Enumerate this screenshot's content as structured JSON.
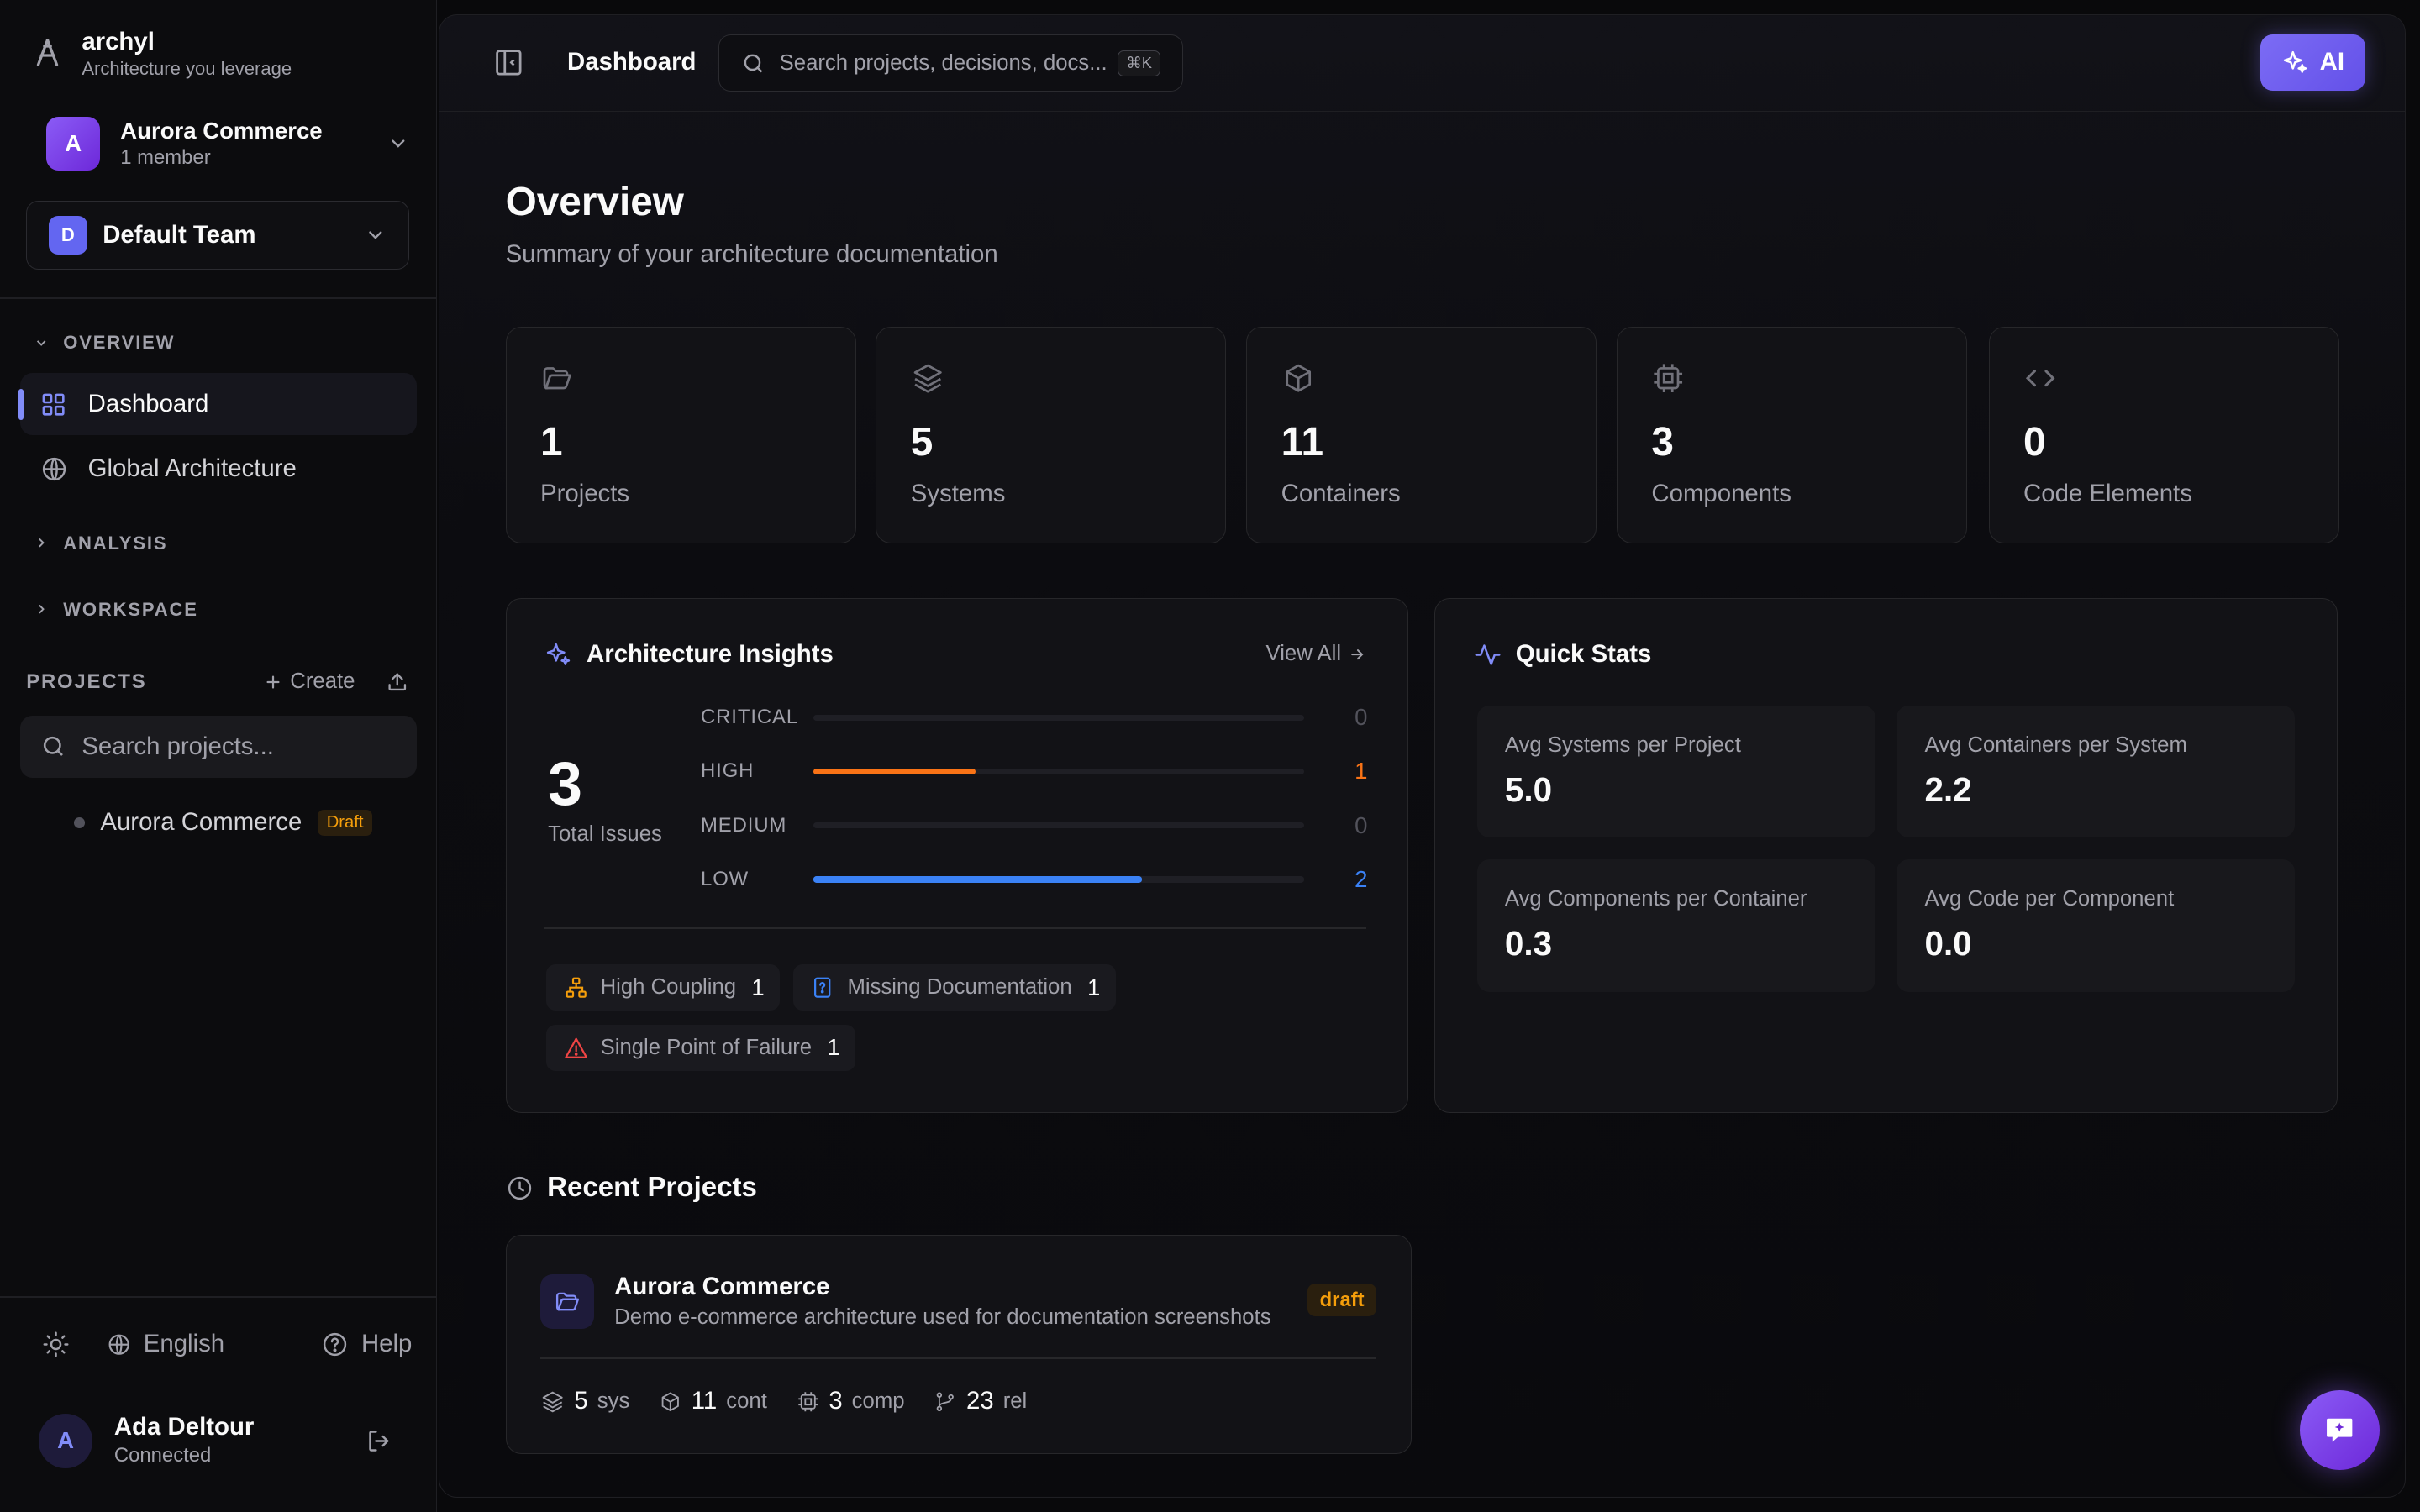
{
  "brand": {
    "name": "archyl",
    "tagline": "Architecture you leverage"
  },
  "org": {
    "initial": "A",
    "name": "Aurora Commerce",
    "members": "1 member"
  },
  "team": {
    "initial": "D",
    "name": "Default Team"
  },
  "sidebar": {
    "overview_label": "OVERVIEW",
    "nav": [
      {
        "label": "Dashboard",
        "icon": "grid-icon",
        "active": true
      },
      {
        "label": "Global Architecture",
        "icon": "globe-icon",
        "active": false
      }
    ],
    "analysis_label": "ANALYSIS",
    "workspace_label": "WORKSPACE",
    "projects_label": "PROJECTS",
    "create_label": "Create",
    "search_placeholder": "Search projects...",
    "projects": [
      {
        "name": "Aurora Commerce",
        "badge": "Draft"
      }
    ]
  },
  "footer": {
    "language": "English",
    "help": "Help"
  },
  "user": {
    "initial": "A",
    "name": "Ada Deltour",
    "status": "Connected"
  },
  "topbar": {
    "page": "Dashboard",
    "search_placeholder": "Search projects, decisions, docs...",
    "shortcut": "⌘K",
    "ai_label": "AI"
  },
  "overview": {
    "title": "Overview",
    "subtitle": "Summary of your architecture documentation"
  },
  "stats": [
    {
      "icon": "folder-icon",
      "value": "1",
      "label": "Projects"
    },
    {
      "icon": "layers-icon",
      "value": "5",
      "label": "Systems"
    },
    {
      "icon": "box-icon",
      "value": "11",
      "label": "Containers"
    },
    {
      "icon": "cpu-icon",
      "value": "3",
      "label": "Components"
    },
    {
      "icon": "code-icon",
      "value": "0",
      "label": "Code Elements"
    }
  ],
  "insights": {
    "title": "Architecture Insights",
    "view_all": "View All",
    "total": "3",
    "total_label": "Total Issues",
    "severities": [
      {
        "name": "CRITICAL",
        "count": 0,
        "fraction": 0,
        "color": "#52525b"
      },
      {
        "name": "HIGH",
        "count": 1,
        "fraction": 0.33,
        "color": "#f97316"
      },
      {
        "name": "MEDIUM",
        "count": 0,
        "fraction": 0,
        "color": "#52525b"
      },
      {
        "name": "LOW",
        "count": 2,
        "fraction": 0.67,
        "color": "#3b82f6"
      }
    ],
    "chips": [
      {
        "icon": "network-icon",
        "label": "High Coupling",
        "count": "1",
        "color": "#f59e0b"
      },
      {
        "icon": "help-doc-icon",
        "label": "Missing Documentation",
        "count": "1",
        "color": "#3b82f6"
      },
      {
        "icon": "warning-icon",
        "label": "Single Point of Failure",
        "count": "1",
        "color": "#ef4444"
      }
    ]
  },
  "quick_stats": {
    "title": "Quick Stats",
    "items": [
      {
        "label": "Avg Systems per Project",
        "value": "5.0"
      },
      {
        "label": "Avg Containers per System",
        "value": "2.2"
      },
      {
        "label": "Avg Components per Container",
        "value": "0.3"
      },
      {
        "label": "Avg Code per Component",
        "value": "0.0"
      }
    ]
  },
  "recent": {
    "title": "Recent Projects",
    "project": {
      "name": "Aurora Commerce",
      "description": "Demo e-commerce architecture used for documentation screenshots",
      "status": "draft",
      "stats": [
        {
          "value": "5",
          "unit": "sys"
        },
        {
          "value": "11",
          "unit": "cont"
        },
        {
          "value": "3",
          "unit": "comp"
        },
        {
          "value": "23",
          "unit": "rel"
        }
      ]
    }
  },
  "colors": {
    "accent": "#818cf8",
    "brand_gradient": "#7c6cf5",
    "warning": "#f59e0b"
  }
}
